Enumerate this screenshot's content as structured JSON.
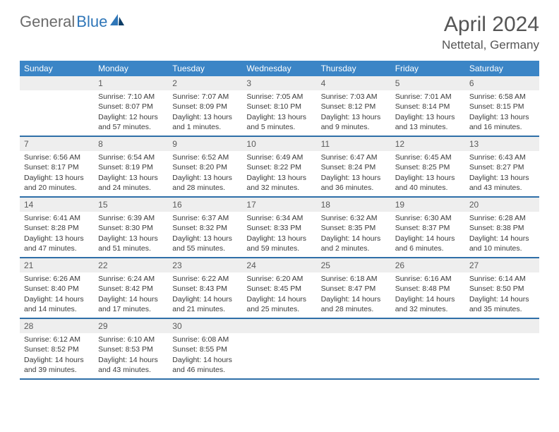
{
  "logo": {
    "text1": "General",
    "text2": "Blue"
  },
  "title": "April 2024",
  "location": "Nettetal, Germany",
  "colors": {
    "header_bg": "#3b85c6",
    "row_divider": "#2f6fa8",
    "daynum_bg": "#eeeeee",
    "logo_gray": "#6b6b6b",
    "logo_blue": "#2f76b8"
  },
  "weekdays": [
    "Sunday",
    "Monday",
    "Tuesday",
    "Wednesday",
    "Thursday",
    "Friday",
    "Saturday"
  ],
  "weeks": [
    [
      {
        "num": "",
        "sunrise": "",
        "sunset": "",
        "daylight": ""
      },
      {
        "num": "1",
        "sunrise": "Sunrise: 7:10 AM",
        "sunset": "Sunset: 8:07 PM",
        "daylight": "Daylight: 12 hours and 57 minutes."
      },
      {
        "num": "2",
        "sunrise": "Sunrise: 7:07 AM",
        "sunset": "Sunset: 8:09 PM",
        "daylight": "Daylight: 13 hours and 1 minutes."
      },
      {
        "num": "3",
        "sunrise": "Sunrise: 7:05 AM",
        "sunset": "Sunset: 8:10 PM",
        "daylight": "Daylight: 13 hours and 5 minutes."
      },
      {
        "num": "4",
        "sunrise": "Sunrise: 7:03 AM",
        "sunset": "Sunset: 8:12 PM",
        "daylight": "Daylight: 13 hours and 9 minutes."
      },
      {
        "num": "5",
        "sunrise": "Sunrise: 7:01 AM",
        "sunset": "Sunset: 8:14 PM",
        "daylight": "Daylight: 13 hours and 13 minutes."
      },
      {
        "num": "6",
        "sunrise": "Sunrise: 6:58 AM",
        "sunset": "Sunset: 8:15 PM",
        "daylight": "Daylight: 13 hours and 16 minutes."
      }
    ],
    [
      {
        "num": "7",
        "sunrise": "Sunrise: 6:56 AM",
        "sunset": "Sunset: 8:17 PM",
        "daylight": "Daylight: 13 hours and 20 minutes."
      },
      {
        "num": "8",
        "sunrise": "Sunrise: 6:54 AM",
        "sunset": "Sunset: 8:19 PM",
        "daylight": "Daylight: 13 hours and 24 minutes."
      },
      {
        "num": "9",
        "sunrise": "Sunrise: 6:52 AM",
        "sunset": "Sunset: 8:20 PM",
        "daylight": "Daylight: 13 hours and 28 minutes."
      },
      {
        "num": "10",
        "sunrise": "Sunrise: 6:49 AM",
        "sunset": "Sunset: 8:22 PM",
        "daylight": "Daylight: 13 hours and 32 minutes."
      },
      {
        "num": "11",
        "sunrise": "Sunrise: 6:47 AM",
        "sunset": "Sunset: 8:24 PM",
        "daylight": "Daylight: 13 hours and 36 minutes."
      },
      {
        "num": "12",
        "sunrise": "Sunrise: 6:45 AM",
        "sunset": "Sunset: 8:25 PM",
        "daylight": "Daylight: 13 hours and 40 minutes."
      },
      {
        "num": "13",
        "sunrise": "Sunrise: 6:43 AM",
        "sunset": "Sunset: 8:27 PM",
        "daylight": "Daylight: 13 hours and 43 minutes."
      }
    ],
    [
      {
        "num": "14",
        "sunrise": "Sunrise: 6:41 AM",
        "sunset": "Sunset: 8:28 PM",
        "daylight": "Daylight: 13 hours and 47 minutes."
      },
      {
        "num": "15",
        "sunrise": "Sunrise: 6:39 AM",
        "sunset": "Sunset: 8:30 PM",
        "daylight": "Daylight: 13 hours and 51 minutes."
      },
      {
        "num": "16",
        "sunrise": "Sunrise: 6:37 AM",
        "sunset": "Sunset: 8:32 PM",
        "daylight": "Daylight: 13 hours and 55 minutes."
      },
      {
        "num": "17",
        "sunrise": "Sunrise: 6:34 AM",
        "sunset": "Sunset: 8:33 PM",
        "daylight": "Daylight: 13 hours and 59 minutes."
      },
      {
        "num": "18",
        "sunrise": "Sunrise: 6:32 AM",
        "sunset": "Sunset: 8:35 PM",
        "daylight": "Daylight: 14 hours and 2 minutes."
      },
      {
        "num": "19",
        "sunrise": "Sunrise: 6:30 AM",
        "sunset": "Sunset: 8:37 PM",
        "daylight": "Daylight: 14 hours and 6 minutes."
      },
      {
        "num": "20",
        "sunrise": "Sunrise: 6:28 AM",
        "sunset": "Sunset: 8:38 PM",
        "daylight": "Daylight: 14 hours and 10 minutes."
      }
    ],
    [
      {
        "num": "21",
        "sunrise": "Sunrise: 6:26 AM",
        "sunset": "Sunset: 8:40 PM",
        "daylight": "Daylight: 14 hours and 14 minutes."
      },
      {
        "num": "22",
        "sunrise": "Sunrise: 6:24 AM",
        "sunset": "Sunset: 8:42 PM",
        "daylight": "Daylight: 14 hours and 17 minutes."
      },
      {
        "num": "23",
        "sunrise": "Sunrise: 6:22 AM",
        "sunset": "Sunset: 8:43 PM",
        "daylight": "Daylight: 14 hours and 21 minutes."
      },
      {
        "num": "24",
        "sunrise": "Sunrise: 6:20 AM",
        "sunset": "Sunset: 8:45 PM",
        "daylight": "Daylight: 14 hours and 25 minutes."
      },
      {
        "num": "25",
        "sunrise": "Sunrise: 6:18 AM",
        "sunset": "Sunset: 8:47 PM",
        "daylight": "Daylight: 14 hours and 28 minutes."
      },
      {
        "num": "26",
        "sunrise": "Sunrise: 6:16 AM",
        "sunset": "Sunset: 8:48 PM",
        "daylight": "Daylight: 14 hours and 32 minutes."
      },
      {
        "num": "27",
        "sunrise": "Sunrise: 6:14 AM",
        "sunset": "Sunset: 8:50 PM",
        "daylight": "Daylight: 14 hours and 35 minutes."
      }
    ],
    [
      {
        "num": "28",
        "sunrise": "Sunrise: 6:12 AM",
        "sunset": "Sunset: 8:52 PM",
        "daylight": "Daylight: 14 hours and 39 minutes."
      },
      {
        "num": "29",
        "sunrise": "Sunrise: 6:10 AM",
        "sunset": "Sunset: 8:53 PM",
        "daylight": "Daylight: 14 hours and 43 minutes."
      },
      {
        "num": "30",
        "sunrise": "Sunrise: 6:08 AM",
        "sunset": "Sunset: 8:55 PM",
        "daylight": "Daylight: 14 hours and 46 minutes."
      },
      {
        "num": "",
        "sunrise": "",
        "sunset": "",
        "daylight": ""
      },
      {
        "num": "",
        "sunrise": "",
        "sunset": "",
        "daylight": ""
      },
      {
        "num": "",
        "sunrise": "",
        "sunset": "",
        "daylight": ""
      },
      {
        "num": "",
        "sunrise": "",
        "sunset": "",
        "daylight": ""
      }
    ]
  ]
}
